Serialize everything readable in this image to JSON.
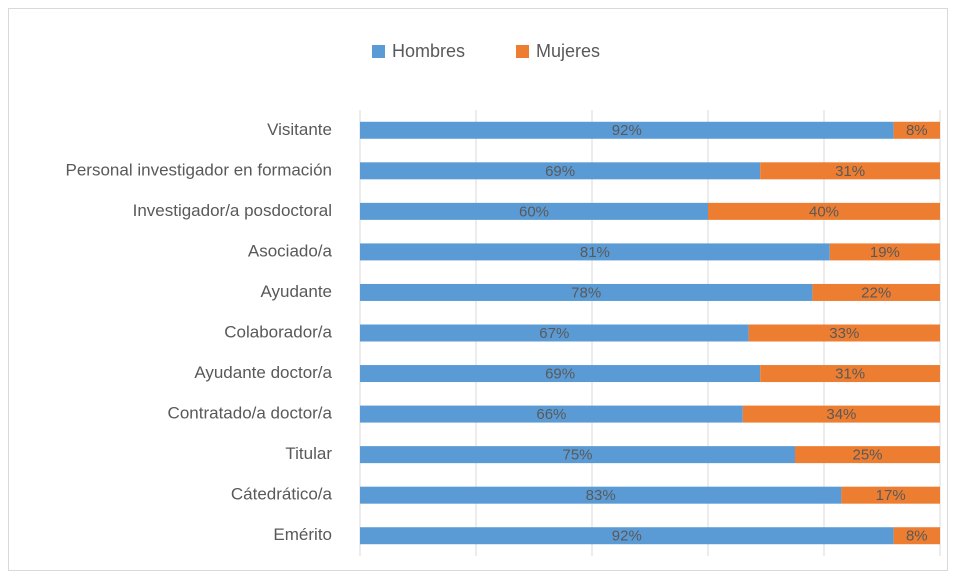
{
  "chart_data": {
    "type": "stacked-barh",
    "categories": [
      "Visitante",
      "Personal investigador en formación",
      "Investigador/a posdoctoral",
      "Asociado/a",
      "Ayudante",
      "Colaborador/a",
      "Ayudante doctor/a",
      "Contratado/a doctor/a",
      "Titular",
      "Cátedrático/a",
      "Emérito"
    ],
    "series": [
      {
        "name": "Hombres",
        "color": "#5b9bd5",
        "values": [
          92,
          69,
          60,
          81,
          78,
          67,
          69,
          66,
          75,
          83,
          92
        ],
        "value_labels": [
          "92%",
          "69%",
          "60%",
          "81%",
          "78%",
          "67%",
          "69%",
          "66%",
          "75%",
          "83%",
          "92%"
        ]
      },
      {
        "name": "Mujeres",
        "color": "#ed7d31",
        "values": [
          8,
          31,
          40,
          19,
          22,
          33,
          31,
          34,
          25,
          17,
          8
        ],
        "value_labels": [
          "8%",
          "31%",
          "40%",
          "19%",
          "22%",
          "33%",
          "31%",
          "34%",
          "25%",
          "17%",
          "8%"
        ]
      }
    ],
    "xlim": [
      0,
      100
    ],
    "xticks": [
      0,
      20,
      40,
      60,
      80,
      100
    ],
    "grid": true,
    "legend": "top"
  }
}
